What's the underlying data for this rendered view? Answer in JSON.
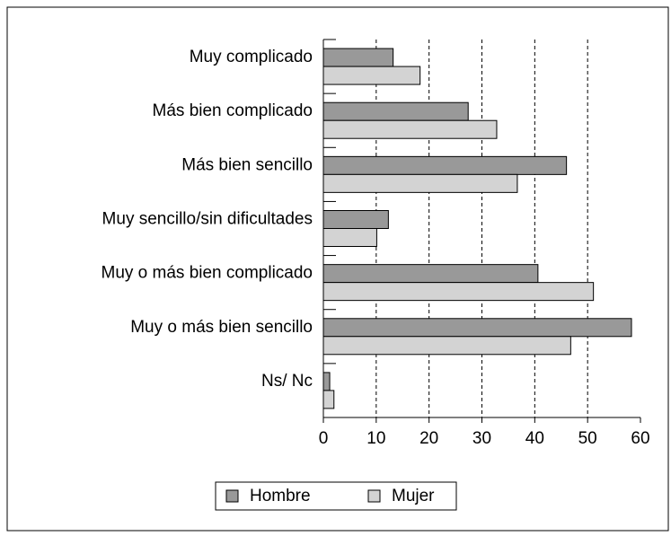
{
  "chart_data": {
    "type": "bar",
    "orientation": "horizontal",
    "categories": [
      "Muy complicado",
      "Más bien complicado",
      "Más bien sencillo",
      "Muy sencillo/sin dificultades",
      "Muy o más bien complicado",
      "Muy o más bien sencillo",
      "Ns/ Nc"
    ],
    "series": [
      {
        "name": "Hombre",
        "color": "#999999",
        "values": [
          13.2,
          27.4,
          46,
          12.3,
          40.6,
          58.3,
          1.2
        ]
      },
      {
        "name": "Mujer",
        "color": "#d3d3d3",
        "values": [
          18.3,
          32.8,
          36.7,
          10.1,
          51.1,
          46.8,
          2
        ]
      }
    ],
    "xlim": [
      0,
      60
    ],
    "xticks": [
      0,
      10,
      20,
      30,
      40,
      50,
      60
    ],
    "grid": true,
    "legend": "bottom"
  }
}
